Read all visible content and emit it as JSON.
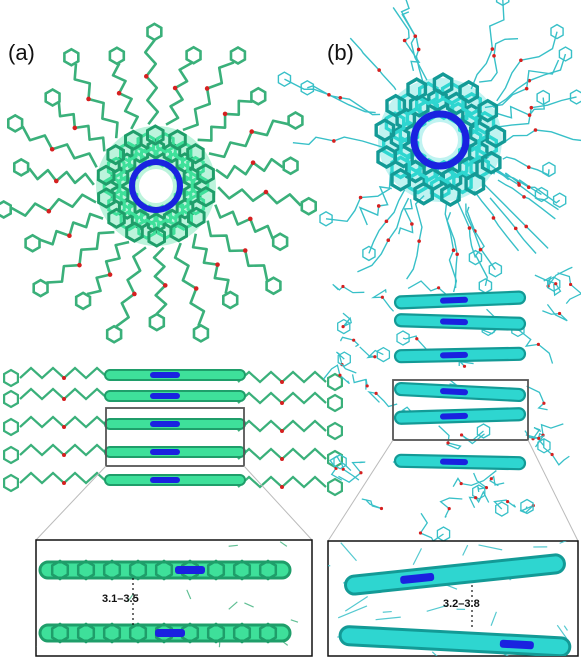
{
  "figure": {
    "panel_a": {
      "label": "(a)",
      "distance_label": "3.1–3.5",
      "colors": {
        "core": "#3ee09a",
        "core_dark": "#1f9e6a",
        "ring_center": "#1a22e0",
        "side_chain": "#3ab07a"
      }
    },
    "panel_b": {
      "label": "(b)",
      "distance_label": "3.2–3.8",
      "colors": {
        "core": "#2ed6d0",
        "core_dark": "#139a96",
        "ring_center": "#1a22e0",
        "side_chain": "#38c0c8"
      }
    },
    "accent_colors": {
      "oxygen": "#d62020",
      "nitrogen": "#3030d0",
      "highlight_box": "#555555",
      "zoom_lines": "#bbbbbb"
    }
  }
}
